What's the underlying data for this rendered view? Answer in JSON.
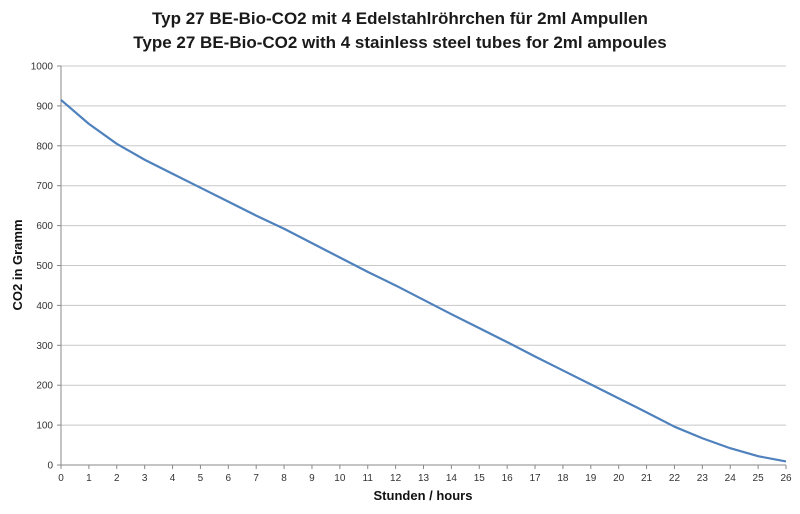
{
  "chart_data": {
    "type": "line",
    "title": "Typ 27 BE-Bio-CO2 mit 4 Edelstahlröhrchen für 2ml Ampullen",
    "subtitle": "Type 27 BE-Bio-CO2 with 4 stainless steel tubes for 2ml ampoules",
    "xlabel": "Stunden / hours",
    "ylabel": "CO2 in Gramm",
    "xlim": [
      0,
      26
    ],
    "ylim": [
      0,
      1000
    ],
    "x_ticks": [
      "0",
      "1",
      "2",
      "3",
      "4",
      "5",
      "6",
      "7",
      "8",
      "9",
      "10",
      "11",
      "12",
      "13",
      "14",
      "15",
      "16",
      "17",
      "18",
      "19",
      "20",
      "21",
      "22",
      "23",
      "24",
      "25",
      "26"
    ],
    "y_ticks": [
      "0",
      "100",
      "200",
      "300",
      "400",
      "500",
      "600",
      "700",
      "800",
      "900",
      "1000"
    ],
    "grid": true,
    "legend": "none",
    "line_color": "#4F81BD",
    "series": [
      {
        "x": [
          0,
          1,
          2,
          3,
          4,
          5,
          6,
          7,
          8,
          9,
          10,
          11,
          12,
          13,
          14,
          15,
          16,
          17,
          18,
          19,
          20,
          21,
          22,
          23,
          24,
          25,
          26
        ],
        "values": [
          915,
          855,
          805,
          765,
          730,
          695,
          660,
          625,
          592,
          556,
          520,
          484,
          450,
          414,
          378,
          343,
          308,
          272,
          237,
          202,
          167,
          132,
          96,
          67,
          42,
          22,
          9
        ]
      }
    ]
  }
}
